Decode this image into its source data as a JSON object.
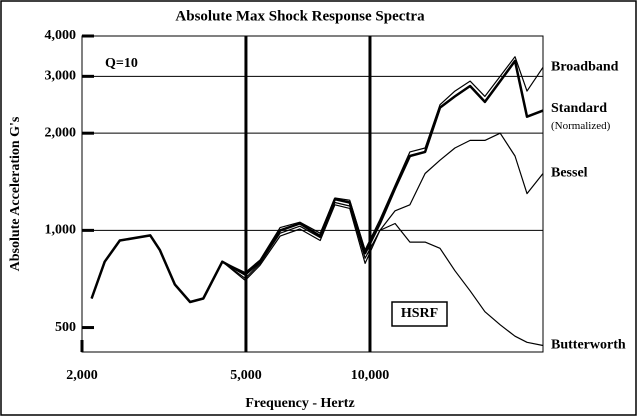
{
  "chart_data": {
    "type": "line",
    "title": "Absolute Max Shock Response Spectra",
    "x_label": "Frequency - Hertz",
    "y_label": "Absolute Acceleration G's",
    "log_x": true,
    "log_y": true,
    "xlim": [
      2000,
      26300
    ],
    "ylim": [
      420,
      4000
    ],
    "xticks": [
      {
        "value": 2000,
        "label": "2,000"
      },
      {
        "value": 5000,
        "label": "5,000"
      },
      {
        "value": 10000,
        "label": "10,000"
      }
    ],
    "yticks": [
      500,
      {
        "value": 1000,
        "label": "1,000"
      },
      {
        "value": 2000,
        "label": "2,000"
      },
      {
        "value": 3000,
        "label": "3,000"
      },
      {
        "value": 4000,
        "label": "4,000"
      }
    ],
    "annotations": [
      "Q=10",
      "(Normalized)",
      "HSRF"
    ],
    "x": [
      2110,
      2270,
      2470,
      2930,
      3090,
      3360,
      3660,
      3940,
      4380,
      4980,
      5410,
      6050,
      6760,
      7570,
      8220,
      8930,
      9730,
      10570,
      11510,
      12500,
      13610,
      14790,
      16070,
      17500,
      19010,
      20700,
      22490,
      24050,
      26300
    ],
    "series": [
      {
        "name": "Broadband",
        "color": "#000000",
        "values": [
          615,
          800,
          930,
          965,
          870,
          680,
          600,
          615,
          800,
          740,
          810,
          1020,
          1060,
          980,
          1260,
          1240,
          870,
          1080,
          1380,
          1750,
          1800,
          2450,
          2700,
          2900,
          2600,
          3000,
          3450,
          2700,
          3200
        ]
      },
      {
        "name": "Standard",
        "color": "#000000",
        "values": [
          615,
          800,
          930,
          965,
          870,
          680,
          600,
          615,
          800,
          730,
          800,
          1000,
          1050,
          960,
          1250,
          1220,
          850,
          1050,
          1350,
          1700,
          1750,
          2400,
          2600,
          2800,
          2500,
          2900,
          3350,
          2250,
          2350
        ]
      },
      {
        "name": "Bessel",
        "color": "#000000",
        "values": [
          615,
          800,
          930,
          965,
          870,
          680,
          600,
          615,
          800,
          710,
          790,
          980,
          1030,
          950,
          1220,
          1190,
          820,
          1000,
          1150,
          1200,
          1500,
          1650,
          1800,
          1900,
          1900,
          2000,
          1700,
          1300,
          1500
        ]
      },
      {
        "name": "Butterworth",
        "color": "#000000",
        "values": [
          615,
          800,
          930,
          965,
          870,
          680,
          600,
          615,
          800,
          700,
          780,
          960,
          1010,
          930,
          1200,
          1170,
          790,
          1000,
          1050,
          920,
          920,
          880,
          750,
          650,
          560,
          510,
          470,
          450,
          440
        ]
      }
    ]
  }
}
